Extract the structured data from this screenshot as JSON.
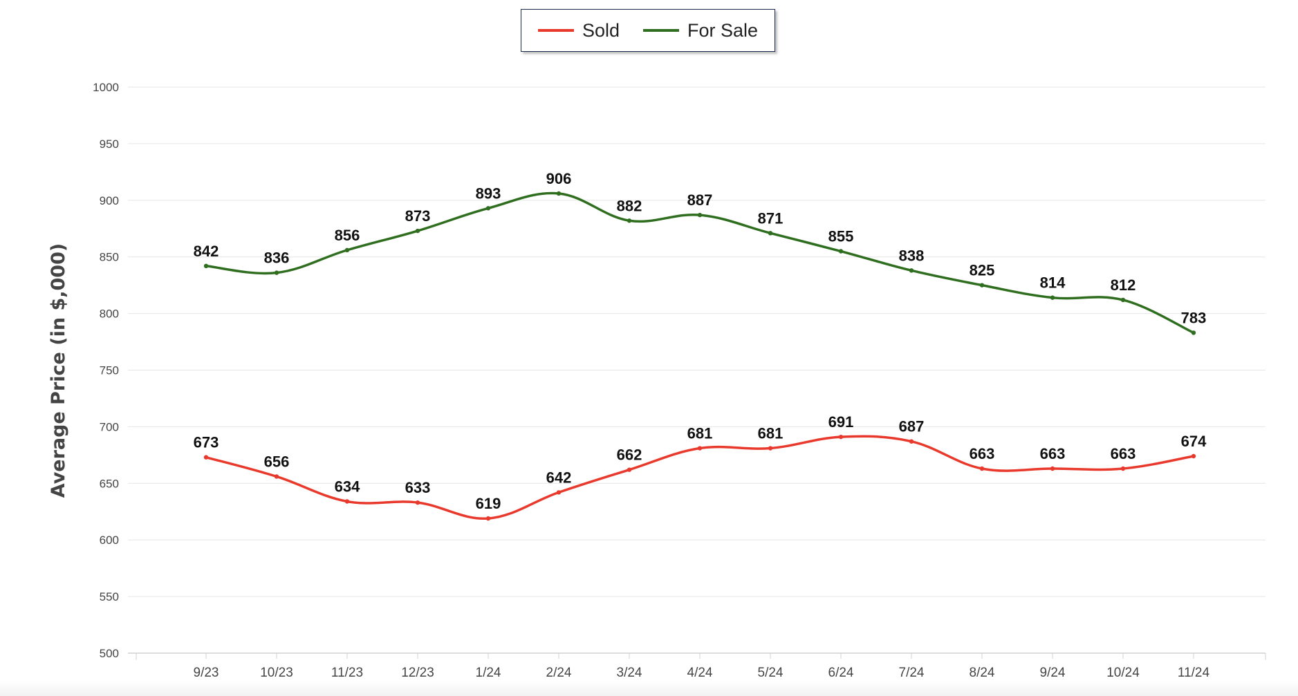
{
  "legend": {
    "sold_label": "Sold",
    "forsale_label": "For Sale"
  },
  "colors": {
    "sold": "#e8392c",
    "forsale": "#2e6e1e",
    "grid": "#e6e6e6",
    "axis_text": "#444444",
    "ylabel": "#444444"
  },
  "chart_data": {
    "type": "line",
    "ylabel": "Average Price (in $,000)",
    "xlabel": "",
    "ylim": [
      500,
      1000
    ],
    "yticks": [
      500,
      550,
      600,
      650,
      700,
      750,
      800,
      850,
      900,
      950,
      1000
    ],
    "categories": [
      "9/23",
      "10/23",
      "11/23",
      "12/23",
      "1/24",
      "2/24",
      "3/24",
      "4/24",
      "5/24",
      "6/24",
      "7/24",
      "8/24",
      "9/24",
      "10/24",
      "11/24"
    ],
    "grid": true,
    "legend_position": "top-center",
    "series": [
      {
        "name": "Sold",
        "values": [
          673,
          656,
          634,
          633,
          619,
          642,
          662,
          681,
          681,
          691,
          687,
          663,
          663,
          663,
          674
        ]
      },
      {
        "name": "For Sale",
        "values": [
          842,
          836,
          856,
          873,
          893,
          906,
          882,
          887,
          871,
          855,
          838,
          825,
          814,
          812,
          783
        ]
      }
    ]
  }
}
